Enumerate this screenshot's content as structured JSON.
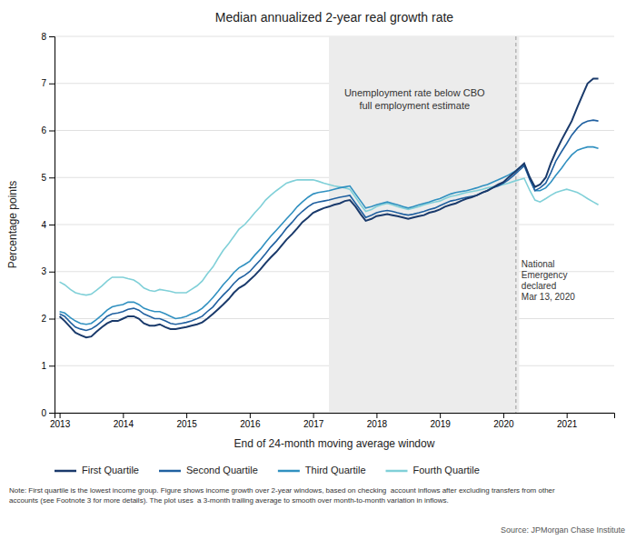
{
  "chart_data": {
    "type": "line",
    "title": "Median annualized 2-year real growth rate",
    "xlabel": "End of 24-month moving average window",
    "ylabel": "Percentage points",
    "xlim": [
      2012.92,
      2021.75
    ],
    "ylim": [
      0,
      8
    ],
    "xticks": [
      2013,
      2014,
      2015,
      2016,
      2017,
      2018,
      2019,
      2020,
      2021
    ],
    "yticks": [
      0,
      1,
      2,
      3,
      4,
      5,
      6,
      7,
      8
    ],
    "grid": true,
    "shaded_region": [
      2017.25,
      2020.25
    ],
    "vline": {
      "x": 2020.2,
      "label": "National\nEmergency\ndeclared\nMar 13, 2020"
    },
    "annotations": [
      {
        "text": "Unemployment rate below CBO\nfull employment estimate",
        "x": 2018.6,
        "y": 6.9
      }
    ],
    "note": "Note: First quartile is the lowest income group. Figure shows income growth over 2-year windows, based on checking  account inflows after excluding transfers from other\naccounts (see Footnote 3 for more details). The plot uses  a 3-month trailing average to smooth over month-to-month variation in inflows.",
    "source": "Source: JPMorgan Chase Institute",
    "x": [
      2013.0,
      2013.08,
      2013.17,
      2013.25,
      2013.33,
      2013.42,
      2013.5,
      2013.58,
      2013.67,
      2013.75,
      2013.83,
      2013.92,
      2014.0,
      2014.08,
      2014.17,
      2014.25,
      2014.33,
      2014.42,
      2014.5,
      2014.58,
      2014.67,
      2014.75,
      2014.83,
      2014.92,
      2015.0,
      2015.08,
      2015.17,
      2015.25,
      2015.33,
      2015.42,
      2015.5,
      2015.58,
      2015.67,
      2015.75,
      2015.83,
      2015.92,
      2016.0,
      2016.08,
      2016.17,
      2016.25,
      2016.33,
      2016.42,
      2016.5,
      2016.58,
      2016.67,
      2016.75,
      2016.83,
      2016.92,
      2017.0,
      2017.08,
      2017.17,
      2017.25,
      2017.33,
      2017.42,
      2017.5,
      2017.58,
      2017.67,
      2017.75,
      2017.83,
      2017.92,
      2018.0,
      2018.08,
      2018.17,
      2018.25,
      2018.33,
      2018.42,
      2018.5,
      2018.58,
      2018.67,
      2018.75,
      2018.83,
      2018.92,
      2019.0,
      2019.08,
      2019.17,
      2019.25,
      2019.33,
      2019.42,
      2019.5,
      2019.58,
      2019.67,
      2019.75,
      2019.83,
      2019.92,
      2020.0,
      2020.08,
      2020.17,
      2020.25,
      2020.33,
      2020.42,
      2020.5,
      2020.58,
      2020.67,
      2020.75,
      2020.83,
      2020.92,
      2021.0,
      2021.08,
      2021.17,
      2021.25,
      2021.33,
      2021.42,
      2021.5
    ],
    "series": [
      {
        "name": "First Quartile",
        "color": "#1a3a6b",
        "values": [
          2.05,
          1.95,
          1.82,
          1.7,
          1.65,
          1.6,
          1.62,
          1.72,
          1.82,
          1.9,
          1.95,
          1.95,
          2.0,
          2.05,
          2.05,
          2.0,
          1.9,
          1.85,
          1.85,
          1.88,
          1.82,
          1.78,
          1.78,
          1.8,
          1.82,
          1.85,
          1.88,
          1.92,
          2.0,
          2.1,
          2.2,
          2.3,
          2.42,
          2.55,
          2.65,
          2.72,
          2.82,
          2.92,
          3.05,
          3.18,
          3.3,
          3.42,
          3.55,
          3.68,
          3.8,
          3.92,
          4.05,
          4.15,
          4.25,
          4.3,
          4.35,
          4.38,
          4.42,
          4.45,
          4.5,
          4.52,
          4.38,
          4.22,
          4.08,
          4.12,
          4.18,
          4.2,
          4.22,
          4.2,
          4.18,
          4.15,
          4.12,
          4.15,
          4.18,
          4.2,
          4.25,
          4.28,
          4.32,
          4.38,
          4.42,
          4.45,
          4.5,
          4.55,
          4.58,
          4.62,
          4.68,
          4.72,
          4.78,
          4.85,
          4.9,
          5.0,
          5.1,
          5.2,
          5.3,
          5.0,
          4.8,
          4.85,
          5.0,
          5.3,
          5.55,
          5.8,
          6.0,
          6.2,
          6.5,
          6.75,
          7.0,
          7.1,
          7.1
        ]
      },
      {
        "name": "Second Quartile",
        "color": "#2060a0",
        "values": [
          2.1,
          2.05,
          1.92,
          1.82,
          1.78,
          1.75,
          1.78,
          1.85,
          1.95,
          2.05,
          2.1,
          2.12,
          2.15,
          2.2,
          2.22,
          2.18,
          2.1,
          2.05,
          2.0,
          2.0,
          1.95,
          1.9,
          1.88,
          1.9,
          1.92,
          1.95,
          2.0,
          2.05,
          2.15,
          2.25,
          2.38,
          2.5,
          2.62,
          2.75,
          2.85,
          2.92,
          3.0,
          3.12,
          3.25,
          3.38,
          3.52,
          3.65,
          3.78,
          3.92,
          4.05,
          4.18,
          4.28,
          4.38,
          4.45,
          4.48,
          4.5,
          4.52,
          4.55,
          4.58,
          4.6,
          4.62,
          4.45,
          4.3,
          4.15,
          4.2,
          4.25,
          4.28,
          4.3,
          4.28,
          4.25,
          4.22,
          4.2,
          4.22,
          4.25,
          4.28,
          4.32,
          4.35,
          4.4,
          4.45,
          4.5,
          4.52,
          4.55,
          4.58,
          4.6,
          4.62,
          4.68,
          4.72,
          4.78,
          4.82,
          4.88,
          4.95,
          5.05,
          5.15,
          5.25,
          4.95,
          4.72,
          4.78,
          4.88,
          5.1,
          5.35,
          5.55,
          5.72,
          5.9,
          6.05,
          6.15,
          6.2,
          6.22,
          6.2
        ]
      },
      {
        "name": "Third Quartile",
        "color": "#3090c0",
        "values": [
          2.15,
          2.12,
          2.02,
          1.95,
          1.9,
          1.88,
          1.9,
          1.98,
          2.08,
          2.18,
          2.25,
          2.28,
          2.3,
          2.35,
          2.35,
          2.3,
          2.22,
          2.18,
          2.15,
          2.15,
          2.1,
          2.05,
          2.0,
          2.02,
          2.05,
          2.1,
          2.15,
          2.22,
          2.32,
          2.45,
          2.58,
          2.72,
          2.85,
          2.98,
          3.08,
          3.15,
          3.22,
          3.35,
          3.48,
          3.62,
          3.75,
          3.88,
          4.0,
          4.12,
          4.25,
          4.38,
          4.48,
          4.58,
          4.65,
          4.68,
          4.7,
          4.72,
          4.75,
          4.78,
          4.8,
          4.82,
          4.65,
          4.5,
          4.35,
          4.38,
          4.42,
          4.45,
          4.48,
          4.45,
          4.42,
          4.38,
          4.35,
          4.38,
          4.42,
          4.45,
          4.48,
          4.52,
          4.55,
          4.6,
          4.65,
          4.68,
          4.7,
          4.72,
          4.75,
          4.78,
          4.82,
          4.85,
          4.9,
          4.95,
          5.0,
          5.05,
          5.12,
          5.2,
          5.28,
          4.98,
          4.72,
          4.72,
          4.78,
          4.9,
          5.05,
          5.2,
          5.35,
          5.48,
          5.58,
          5.62,
          5.65,
          5.65,
          5.62
        ]
      },
      {
        "name": "Fourth Quartile",
        "color": "#80d0d8",
        "values": [
          2.78,
          2.72,
          2.62,
          2.55,
          2.52,
          2.5,
          2.52,
          2.6,
          2.7,
          2.8,
          2.88,
          2.88,
          2.88,
          2.85,
          2.82,
          2.75,
          2.65,
          2.6,
          2.58,
          2.62,
          2.6,
          2.58,
          2.55,
          2.55,
          2.55,
          2.62,
          2.7,
          2.8,
          2.95,
          3.1,
          3.28,
          3.45,
          3.6,
          3.75,
          3.9,
          4.0,
          4.12,
          4.25,
          4.38,
          4.52,
          4.62,
          4.72,
          4.8,
          4.88,
          4.92,
          4.95,
          4.95,
          4.95,
          4.95,
          4.92,
          4.88,
          4.85,
          4.82,
          4.8,
          4.78,
          4.75,
          4.58,
          4.42,
          4.28,
          4.32,
          4.38,
          4.42,
          4.45,
          4.42,
          4.38,
          4.35,
          4.32,
          4.35,
          4.38,
          4.42,
          4.45,
          4.48,
          4.5,
          4.55,
          4.6,
          4.62,
          4.65,
          4.68,
          4.7,
          4.72,
          4.75,
          4.78,
          4.8,
          4.82,
          4.85,
          4.88,
          4.92,
          4.95,
          4.98,
          4.72,
          4.52,
          4.48,
          4.55,
          4.62,
          4.68,
          4.72,
          4.75,
          4.72,
          4.68,
          4.62,
          4.55,
          4.48,
          4.42
        ]
      }
    ]
  }
}
